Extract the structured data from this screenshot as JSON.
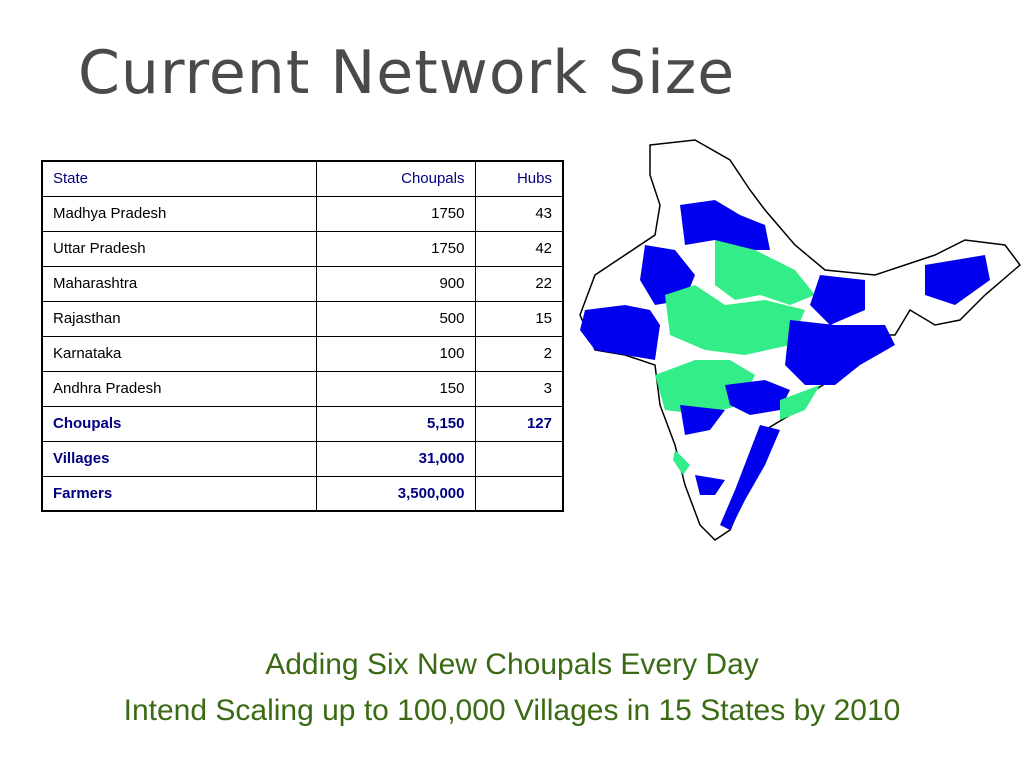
{
  "title": "Current Network Size",
  "table": {
    "header": [
      "State",
      "Choupals",
      "Hubs"
    ],
    "rows": [
      [
        "Madhya Pradesh",
        "1750",
        "43"
      ],
      [
        "Uttar Pradesh",
        "1750",
        "42"
      ],
      [
        "Maharashtra",
        "900",
        "22"
      ],
      [
        "Rajasthan",
        "500",
        "15"
      ],
      [
        "Karnataka",
        "100",
        "2"
      ],
      [
        "Andhra Pradesh",
        "150",
        "3"
      ]
    ],
    "totals": [
      [
        "Choupals",
        "5,150",
        "127"
      ],
      [
        "Villages",
        "31,000"
      ],
      [
        "Farmers",
        "3,500,000"
      ]
    ]
  },
  "footer": [
    "Adding Six New Choupals Every Day",
    "Intend Scaling up to 100,000 Villages in 15 States by 2010"
  ]
}
